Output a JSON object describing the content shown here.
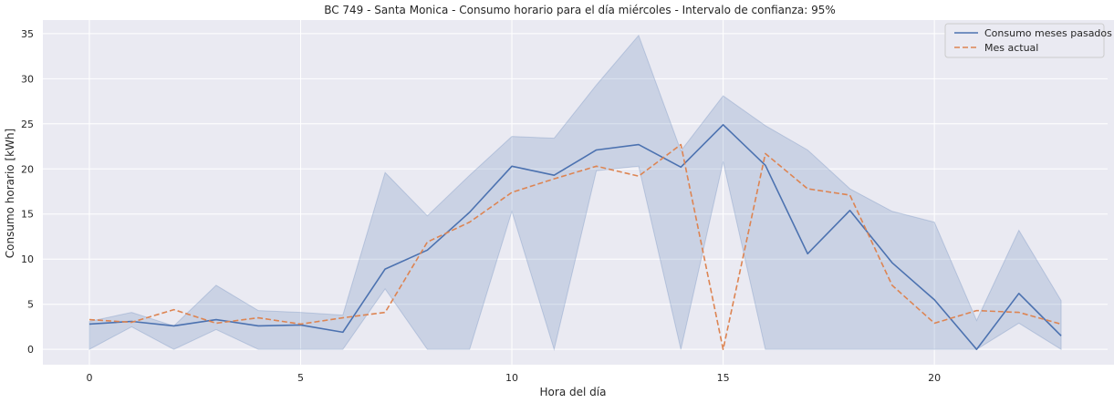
{
  "chart_data": {
    "type": "line",
    "title": "BC 749 - Santa Monica - Consumo horario para el día miércoles - Intervalo de confianza: 95%",
    "xlabel": "Hora del día",
    "ylabel": "Consumo horario [kWh]",
    "x": [
      0,
      1,
      2,
      3,
      4,
      5,
      6,
      7,
      8,
      9,
      10,
      11,
      12,
      13,
      14,
      15,
      16,
      17,
      18,
      19,
      20,
      21,
      22,
      23
    ],
    "xlim": [
      -1.1,
      24.1
    ],
    "ylim": [
      -1.7,
      36.5
    ],
    "xticks": [
      0,
      5,
      10,
      15,
      20
    ],
    "yticks": [
      0,
      5,
      10,
      15,
      20,
      25,
      30,
      35
    ],
    "grid": true,
    "legend_position": "top-right",
    "series": [
      {
        "name": "Consumo meses pasados",
        "style": "solid",
        "color": "#4c72b0",
        "values": [
          2.8,
          3.1,
          2.6,
          3.3,
          2.6,
          2.7,
          1.9,
          8.9,
          11.0,
          15.2,
          20.3,
          19.3,
          22.1,
          22.7,
          20.2,
          24.9,
          20.4,
          10.6,
          15.4,
          9.6,
          5.5,
          0.0,
          6.2,
          1.5
        ],
        "ci_lower": [
          0.0,
          2.5,
          0.0,
          2.2,
          0.0,
          0.0,
          0.0,
          6.7,
          0.0,
          0.0,
          15.3,
          0.0,
          19.8,
          20.3,
          0.0,
          20.8,
          0.0,
          0.0,
          0.0,
          0.0,
          0.0,
          0.0,
          2.9,
          0.0
        ],
        "ci_upper": [
          3.1,
          4.1,
          2.6,
          7.1,
          4.3,
          4.1,
          3.8,
          19.6,
          14.8,
          19.3,
          23.6,
          23.4,
          29.3,
          34.8,
          22.0,
          28.1,
          24.8,
          22.1,
          17.8,
          15.3,
          14.1,
          3.2,
          13.2,
          5.4
        ]
      },
      {
        "name": "Mes actual",
        "style": "dashed",
        "color": "#dd8452",
        "values": [
          3.3,
          3.0,
          4.4,
          2.9,
          3.5,
          2.8,
          3.5,
          4.1,
          11.9,
          14.1,
          17.4,
          18.9,
          20.3,
          19.2,
          22.7,
          0.0,
          21.7,
          17.8,
          17.1,
          7.1,
          2.9,
          4.3,
          4.1,
          2.8
        ]
      }
    ]
  }
}
